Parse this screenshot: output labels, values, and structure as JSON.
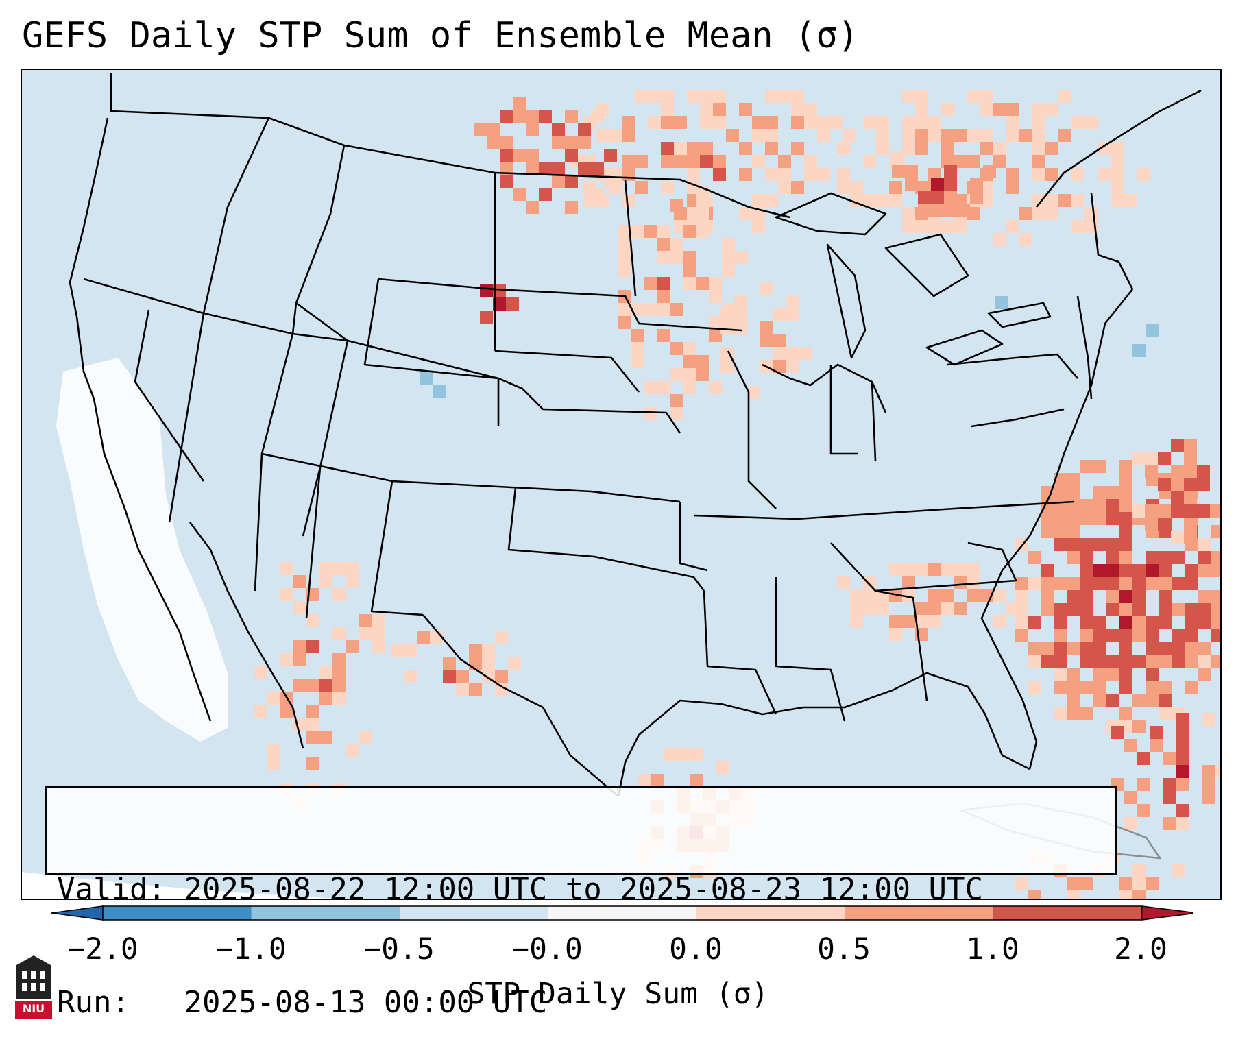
{
  "title": "GEFS Daily STP Sum of Ensemble Mean (σ)",
  "info": {
    "valid_label": "Valid:",
    "valid_value": "2025-08-22 12:00 UTC to 2025-08-23 12:00 UTC",
    "run_label": "Run:",
    "run_value": "2025-08-13 00:00 UTC"
  },
  "colorbar": {
    "label": "STP Daily Sum (σ)",
    "ticks": [
      "−2.0",
      "−1.0",
      "−0.5",
      "−0.0",
      "0.0",
      "0.5",
      "1.0",
      "2.0"
    ],
    "colors": [
      "#3f8ec4",
      "#92c4de",
      "#d3e5f1",
      "#f6f6f6",
      "#fcd6c3",
      "#f4a081",
      "#d4564a"
    ],
    "extend_low_color": "#2166ac",
    "extend_high_color": "#b2182b"
  },
  "map_colors": {
    "ocean_background": "#d3e5f1",
    "land_missing": "#ffffff",
    "light_positive": "#fcd6c3",
    "medium_positive": "#f4a081",
    "strong_positive": "#d4564a",
    "very_strong_positive": "#b2182b",
    "light_negative": "#92c4de"
  },
  "logo": {
    "name": "NIU",
    "text": "NIU",
    "color": "#c8102e"
  }
}
